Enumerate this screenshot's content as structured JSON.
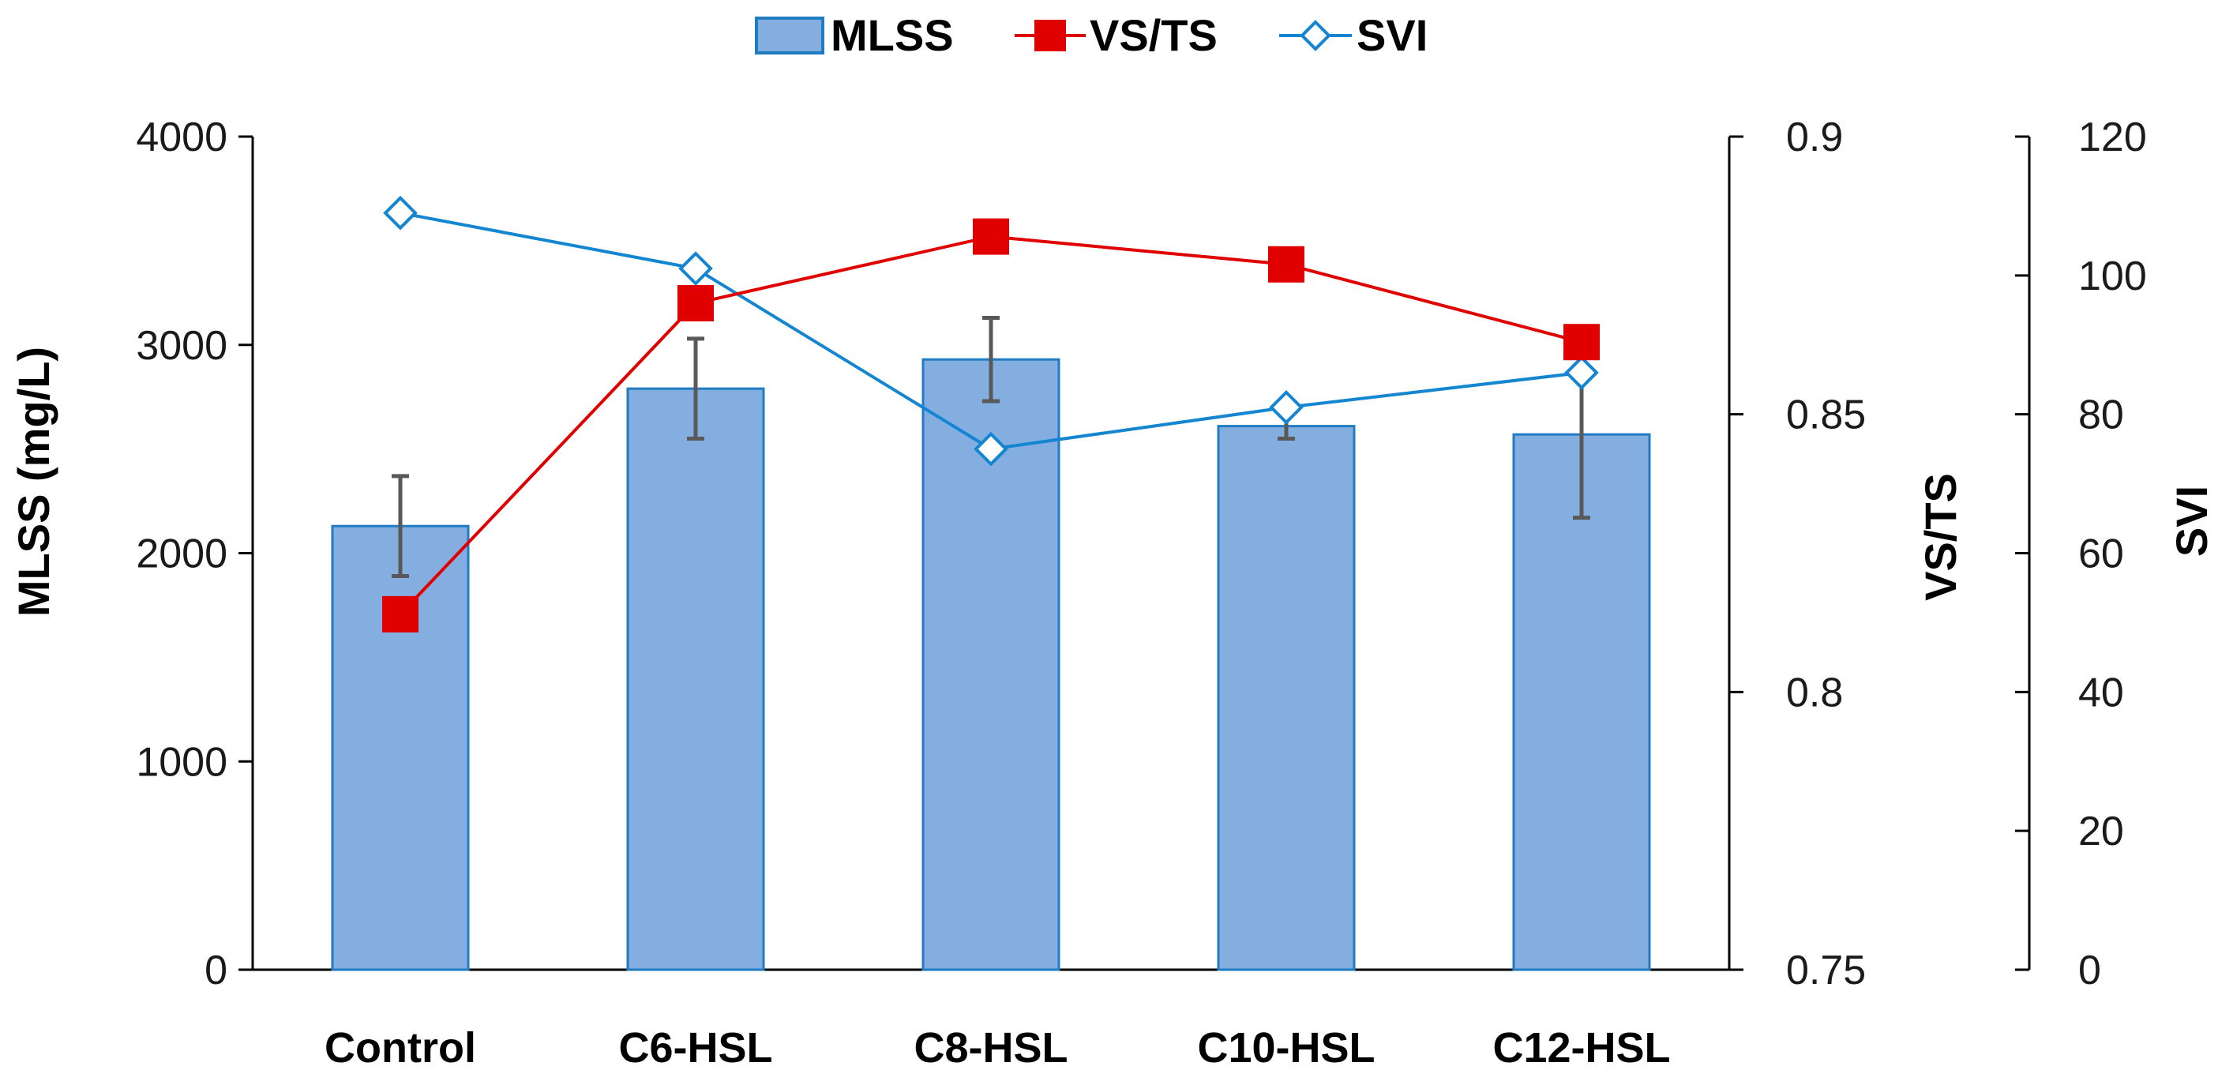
{
  "chart_data": {
    "type": "bar",
    "categories": [
      "Control",
      "C6-HSL",
      "C8-HSL",
      "C10-HSL",
      "C12-HSL"
    ],
    "series": [
      {
        "name": "MLSS",
        "kind": "bar",
        "axis": "left",
        "values": [
          2130,
          2790,
          2930,
          2610,
          2570
        ],
        "error": [
          240,
          240,
          200,
          60,
          400
        ],
        "color": "#84AEE0",
        "edge_color": "#1F7CC3"
      },
      {
        "name": "VS/TS",
        "kind": "line",
        "axis": "right1",
        "marker": "square",
        "values": [
          0.814,
          0.87,
          0.882,
          0.877,
          0.863
        ],
        "color": "#E00000"
      },
      {
        "name": "SVI",
        "kind": "line",
        "axis": "right2",
        "marker": "diamond-open",
        "values": [
          109,
          101,
          75,
          81,
          86
        ],
        "color": "#1486D1"
      }
    ],
    "axes": {
      "left": {
        "label": "MLSS (mg/L)",
        "range": [
          0,
          4000
        ],
        "ticks": [
          "0",
          "1000",
          "2000",
          "3000",
          "4000"
        ]
      },
      "right1": {
        "label": "VS/TS",
        "range": [
          0.75,
          0.9
        ],
        "ticks": [
          "0.75",
          "0.8",
          "0.85",
          "0.9"
        ]
      },
      "right2": {
        "label": "SVI",
        "range": [
          0,
          120
        ],
        "ticks": [
          "0",
          "20",
          "40",
          "60",
          "80",
          "100",
          "120"
        ]
      }
    },
    "legend": {
      "placement": "top-center",
      "entries": [
        "MLSS",
        "VS/TS",
        "SVI"
      ]
    },
    "grid": false,
    "error_bar_color": "#595959"
  }
}
